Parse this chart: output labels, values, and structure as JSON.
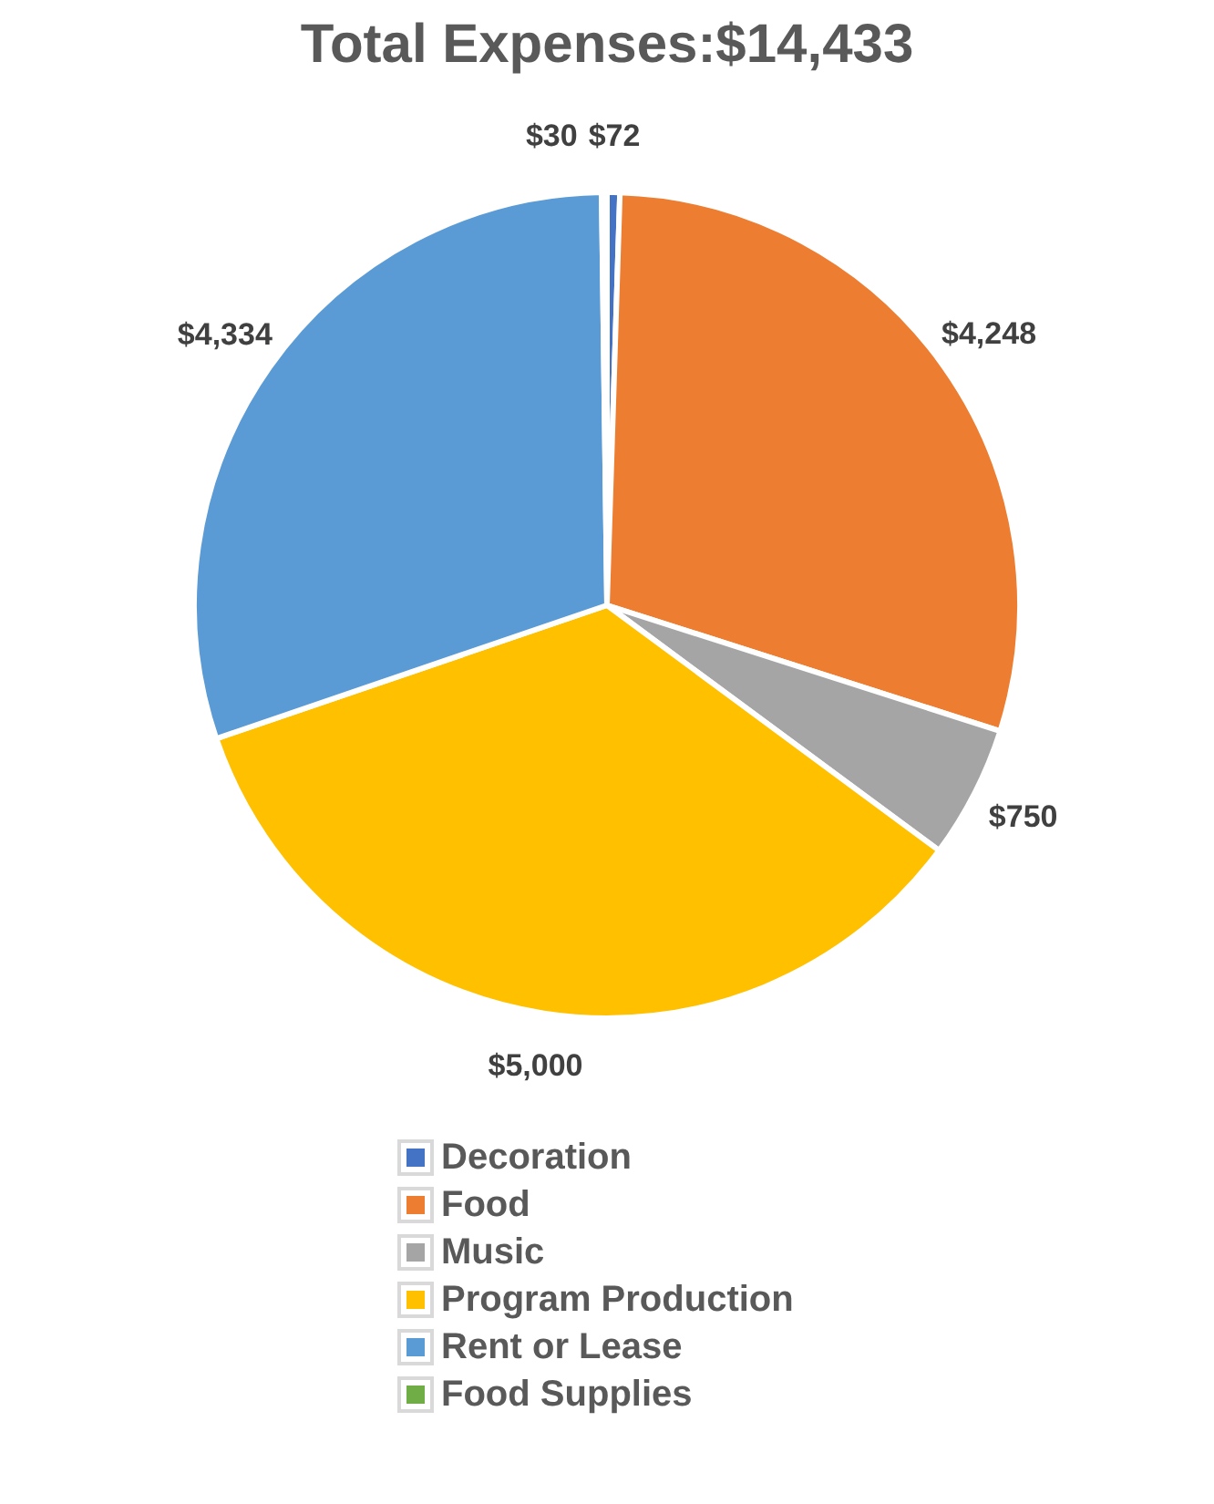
{
  "chart_data": {
    "type": "pie",
    "title": "Total Expenses:$14,433",
    "categories": [
      "Decoration",
      "Food",
      "Music",
      "Program Production",
      "Rent or Lease",
      "Food Supplies"
    ],
    "values": [
      72,
      4248,
      750,
      5000,
      4334,
      30
    ],
    "colors": [
      "#4472c4",
      "#ed7d31",
      "#a5a5a5",
      "#ffc000",
      "#5b9bd5",
      "#70ad47"
    ],
    "value_labels": [
      "$72",
      "$4,248",
      "$750",
      "$5,000",
      "$4,334",
      "$30"
    ],
    "legend": "bottom"
  }
}
